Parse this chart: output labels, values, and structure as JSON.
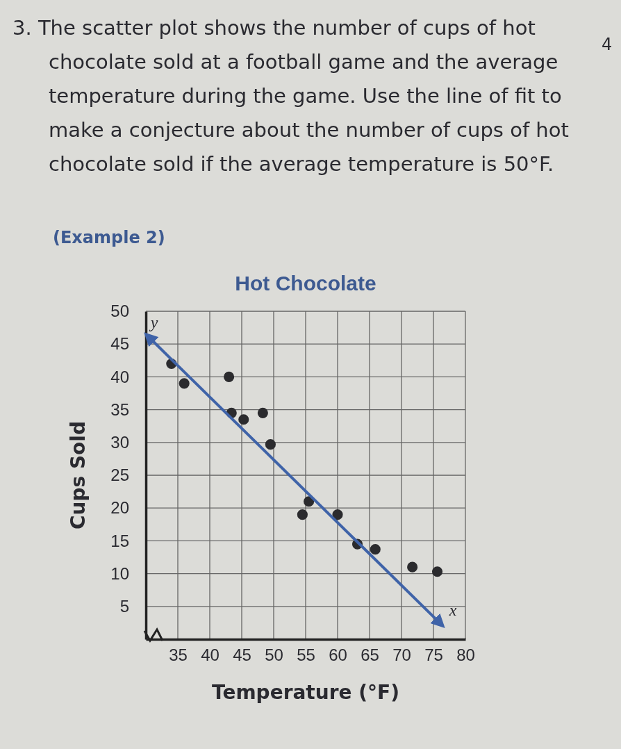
{
  "chart_data": {
    "type": "scatter",
    "title": "Hot Chocolate",
    "xlabel": "Temperature (°F)",
    "ylabel": "Cups Sold",
    "annotations": [
      "3. The scatter plot shows the number of cups of hot chocolate sold at a football game and the average temperature during the game. Use the line of fit to make a conjecture about the number of cups of hot chocolate sold if the average temperature is 50°F.",
      "(Example 2)",
      "4",
      "y",
      "x"
    ],
    "series": [
      {
        "marker": "circle",
        "color": "#2b2b2e",
        "x": [
          34,
          36,
          43,
          43.4,
          45.3,
          48.3,
          49.5,
          55.5,
          54.5,
          60,
          63.1,
          65.9,
          71.7,
          75.6
        ],
        "values": [
          42,
          39,
          40,
          34.5,
          33.5,
          34.5,
          29.7,
          21,
          19,
          19,
          14.5,
          13.7,
          11,
          10.3
        ]
      },
      {
        "type": "line",
        "marker": "none",
        "color": "#3f63a8",
        "x": [
          30,
          76.5
        ],
        "values": [
          46.5,
          2
        ]
      }
    ],
    "xlim": [
      30,
      80
    ],
    "ylim": [
      0,
      50
    ],
    "xticks": [
      35,
      40,
      45,
      50,
      55,
      60,
      65,
      70,
      75,
      80
    ],
    "yticks": [
      5,
      10,
      15,
      20,
      25,
      30,
      35,
      40,
      45,
      50
    ],
    "grid": true,
    "line_style": "solid"
  }
}
